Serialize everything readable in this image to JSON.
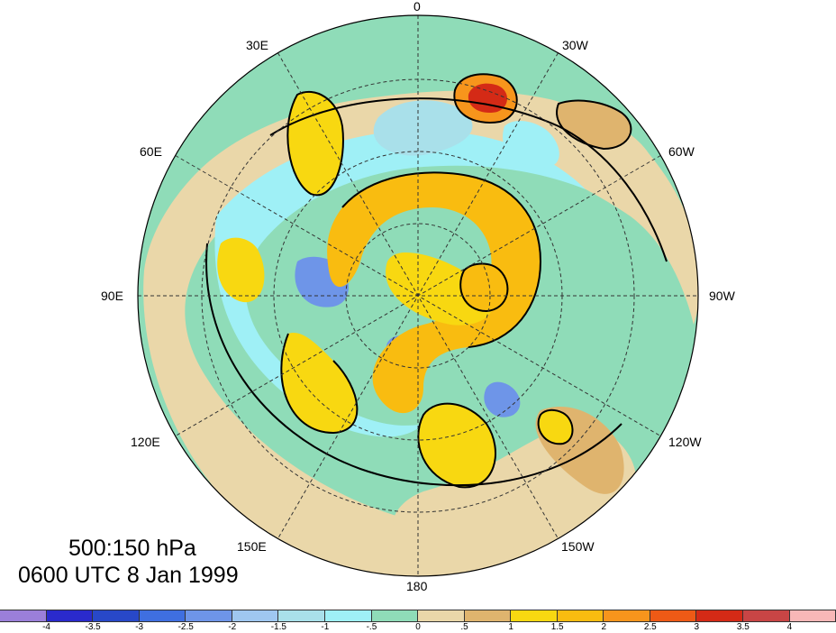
{
  "title": {
    "line1": "500:150 hPa",
    "line2": "0600 UTC 8 Jan 1999"
  },
  "longitude_labels": {
    "top": "0",
    "upper_left": "30E",
    "upper_right": "30W",
    "left_high": "60E",
    "right_high": "60W",
    "left": "90E",
    "right": "90W",
    "left_low": "120E",
    "right_low": "120W",
    "lower_left": "150E",
    "lower_right": "150W",
    "bottom": "180"
  },
  "colorbar": {
    "colors": [
      "#9b7fd9",
      "#2a2acc",
      "#2848c8",
      "#3f6fe0",
      "#6e95e8",
      "#9fc7f0",
      "#a9e0ea",
      "#9ff0f6",
      "#8fdcb8",
      "#ead7a9",
      "#dfb46e",
      "#f8d811",
      "#f9bc10",
      "#f7951c",
      "#ee5a16",
      "#d42a16",
      "#c84545",
      "#f8b7b7"
    ],
    "labels": [
      "-4",
      "-3.5",
      "-3",
      "-2.5",
      "-2",
      "-1.5",
      "-1",
      "-.5",
      "0",
      ".5",
      "1",
      "1.5",
      "2",
      "2.5",
      "3",
      "3.5",
      "4"
    ]
  },
  "map": {
    "projection": "north polar stereographic",
    "background_color": "#8fdcb8"
  }
}
